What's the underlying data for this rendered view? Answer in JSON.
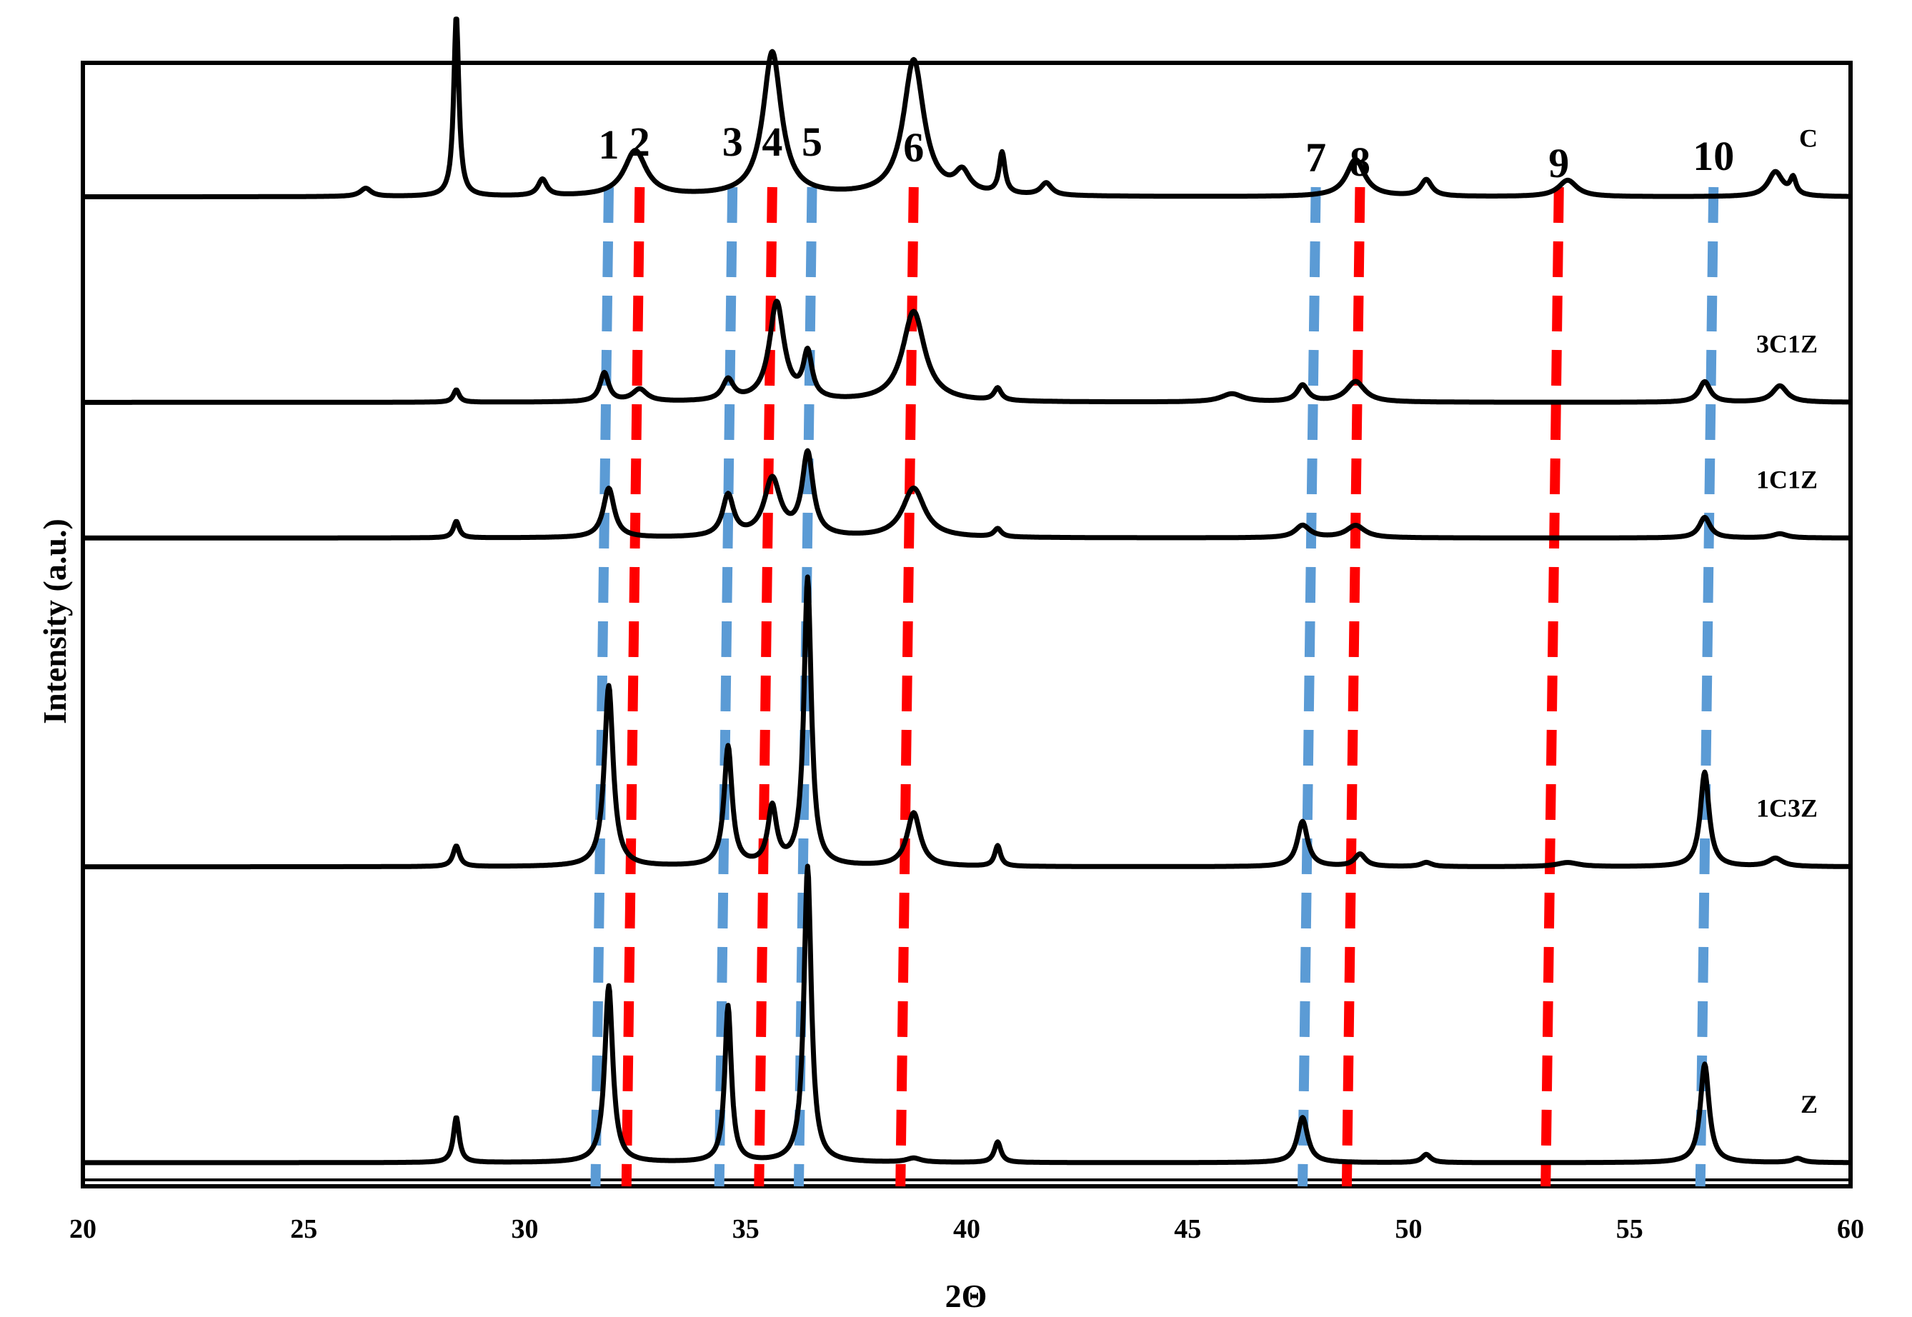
{
  "chart_data": {
    "type": "line",
    "title": "",
    "xlabel": "2Θ",
    "ylabel": "Intensity (a.u.)",
    "xlim": [
      20,
      60
    ],
    "xticks": [
      20,
      25,
      30,
      35,
      40,
      45,
      50,
      55,
      60
    ],
    "yticks": [],
    "grid": false,
    "colors": {
      "trace": "#000000",
      "zno_ref": "#5B9BD5",
      "cuo_ref": "#FF0000"
    },
    "reference_lines": [
      {
        "label": "1",
        "x": 31.9,
        "phase": "blue"
      },
      {
        "label": "2",
        "x": 32.6,
        "phase": "red"
      },
      {
        "label": "3",
        "x": 34.7,
        "phase": "blue"
      },
      {
        "label": "4",
        "x": 35.6,
        "phase": "red"
      },
      {
        "label": "5",
        "x": 36.5,
        "phase": "blue"
      },
      {
        "label": "6",
        "x": 38.8,
        "phase": "red"
      },
      {
        "label": "7",
        "x": 47.9,
        "phase": "blue"
      },
      {
        "label": "8",
        "x": 48.9,
        "phase": "red"
      },
      {
        "label": "9",
        "x": 53.4,
        "phase": "red"
      },
      {
        "label": "10",
        "x": 56.9,
        "phase": "blue"
      }
    ],
    "series": [
      {
        "name": "C",
        "baseline": 0.85,
        "peaks": [
          {
            "x": 26.4,
            "h": 0.02,
            "w": 0.15
          },
          {
            "x": 28.45,
            "h": 0.44,
            "w": 0.07
          },
          {
            "x": 30.4,
            "h": 0.04,
            "w": 0.12
          },
          {
            "x": 32.5,
            "h": 0.11,
            "w": 0.3
          },
          {
            "x": 35.6,
            "h": 0.35,
            "w": 0.25
          },
          {
            "x": 38.8,
            "h": 0.33,
            "w": 0.28
          },
          {
            "x": 39.9,
            "h": 0.05,
            "w": 0.2
          },
          {
            "x": 40.8,
            "h": 0.1,
            "w": 0.08
          },
          {
            "x": 41.8,
            "h": 0.03,
            "w": 0.15
          },
          {
            "x": 48.8,
            "h": 0.09,
            "w": 0.25
          },
          {
            "x": 50.4,
            "h": 0.04,
            "w": 0.15
          },
          {
            "x": 53.6,
            "h": 0.04,
            "w": 0.25
          },
          {
            "x": 58.3,
            "h": 0.06,
            "w": 0.2
          },
          {
            "x": 58.7,
            "h": 0.04,
            "w": 0.08
          }
        ]
      },
      {
        "name": "3C1Z",
        "baseline": 0.35,
        "peaks": [
          {
            "x": 28.45,
            "h": 0.03,
            "w": 0.08
          },
          {
            "x": 31.8,
            "h": 0.07,
            "w": 0.12
          },
          {
            "x": 32.6,
            "h": 0.03,
            "w": 0.2
          },
          {
            "x": 34.6,
            "h": 0.05,
            "w": 0.15
          },
          {
            "x": 35.7,
            "h": 0.24,
            "w": 0.2
          },
          {
            "x": 36.4,
            "h": 0.11,
            "w": 0.12
          },
          {
            "x": 38.8,
            "h": 0.22,
            "w": 0.3
          },
          {
            "x": 40.7,
            "h": 0.03,
            "w": 0.1
          },
          {
            "x": 46,
            "h": 0.02,
            "w": 0.3
          },
          {
            "x": 47.6,
            "h": 0.04,
            "w": 0.15
          },
          {
            "x": 48.8,
            "h": 0.05,
            "w": 0.25
          },
          {
            "x": 56.7,
            "h": 0.05,
            "w": 0.15
          },
          {
            "x": 58.4,
            "h": 0.04,
            "w": 0.2
          }
        ]
      },
      {
        "name": "1C1Z",
        "baseline": 0.02,
        "peaks": [
          {
            "x": 28.45,
            "h": 0.04,
            "w": 0.08
          },
          {
            "x": 31.9,
            "h": 0.12,
            "w": 0.15
          },
          {
            "x": 34.6,
            "h": 0.1,
            "w": 0.15
          },
          {
            "x": 35.6,
            "h": 0.14,
            "w": 0.22
          },
          {
            "x": 36.4,
            "h": 0.2,
            "w": 0.15
          },
          {
            "x": 38.8,
            "h": 0.12,
            "w": 0.3
          },
          {
            "x": 40.7,
            "h": 0.02,
            "w": 0.1
          },
          {
            "x": 47.6,
            "h": 0.03,
            "w": 0.2
          },
          {
            "x": 48.8,
            "h": 0.03,
            "w": 0.25
          },
          {
            "x": 56.7,
            "h": 0.05,
            "w": 0.15
          },
          {
            "x": 58.4,
            "h": 0.01,
            "w": 0.2
          }
        ]
      },
      {
        "name": "1C3Z",
        "baseline": -0.78,
        "peaks": [
          {
            "x": 28.45,
            "h": 0.05,
            "w": 0.09
          },
          {
            "x": 31.9,
            "h": 0.44,
            "w": 0.12
          },
          {
            "x": 34.6,
            "h": 0.29,
            "w": 0.11
          },
          {
            "x": 35.6,
            "h": 0.14,
            "w": 0.12
          },
          {
            "x": 36.4,
            "h": 0.7,
            "w": 0.1
          },
          {
            "x": 38.8,
            "h": 0.13,
            "w": 0.18
          },
          {
            "x": 40.7,
            "h": 0.05,
            "w": 0.08
          },
          {
            "x": 47.6,
            "h": 0.11,
            "w": 0.14
          },
          {
            "x": 48.9,
            "h": 0.03,
            "w": 0.15
          },
          {
            "x": 50.4,
            "h": 0.01,
            "w": 0.15
          },
          {
            "x": 53.6,
            "h": 0.01,
            "w": 0.3
          },
          {
            "x": 56.7,
            "h": 0.23,
            "w": 0.12
          },
          {
            "x": 58.3,
            "h": 0.02,
            "w": 0.2
          }
        ]
      },
      {
        "name": "Z",
        "baseline": -1.5,
        "peaks": [
          {
            "x": 28.45,
            "h": 0.11,
            "w": 0.08
          },
          {
            "x": 31.9,
            "h": 0.43,
            "w": 0.11
          },
          {
            "x": 34.6,
            "h": 0.38,
            "w": 0.09
          },
          {
            "x": 36.4,
            "h": 0.72,
            "w": 0.1
          },
          {
            "x": 38.8,
            "h": 0.01,
            "w": 0.2
          },
          {
            "x": 40.7,
            "h": 0.05,
            "w": 0.09
          },
          {
            "x": 47.6,
            "h": 0.11,
            "w": 0.14
          },
          {
            "x": 50.4,
            "h": 0.02,
            "w": 0.12
          },
          {
            "x": 56.7,
            "h": 0.24,
            "w": 0.12
          },
          {
            "x": 58.8,
            "h": 0.01,
            "w": 0.15
          }
        ]
      }
    ]
  }
}
